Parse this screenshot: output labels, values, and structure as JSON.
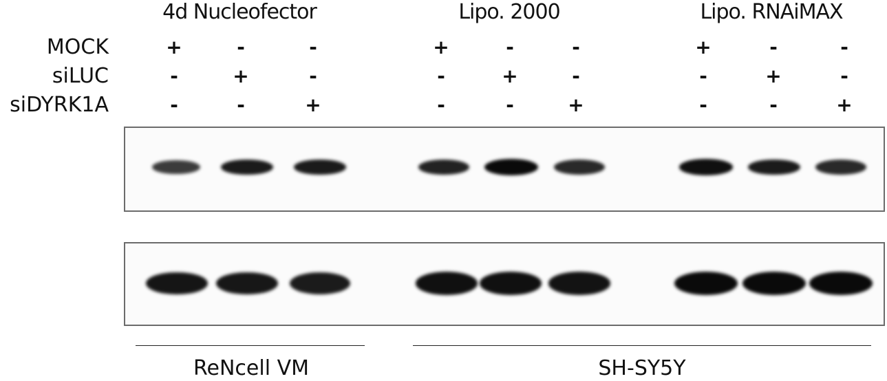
{
  "groups": [
    {
      "title": "4d Nucleofector"
    },
    {
      "title": "Lipo. 2000"
    },
    {
      "title": "Lipo. RNAiMAX"
    }
  ],
  "conditions": [
    {
      "label": "MOCK",
      "signs": [
        "+",
        "-",
        "-",
        "+",
        "-",
        "-",
        "+",
        "-",
        "-"
      ]
    },
    {
      "label": "siLUC",
      "signs": [
        "-",
        "+",
        "-",
        "-",
        "+",
        "-",
        "-",
        "+",
        "-"
      ]
    },
    {
      "label": "siDYRK1A",
      "signs": [
        "-",
        "-",
        "+",
        "-",
        "-",
        "+",
        "-",
        "-",
        "+"
      ]
    }
  ],
  "blots": [
    {
      "panel": "top",
      "intensities": [
        0.55,
        0.85,
        0.85,
        0.78,
        1.0,
        0.72,
        0.95,
        0.85,
        0.72
      ]
    },
    {
      "panel": "bottom",
      "intensities": [
        0.9,
        0.88,
        0.85,
        0.95,
        0.95,
        0.92,
        1.0,
        1.0,
        1.0
      ]
    }
  ],
  "cell_lines": [
    {
      "label": "ReNcell VM"
    },
    {
      "label": "SH-SY5Y"
    }
  ]
}
